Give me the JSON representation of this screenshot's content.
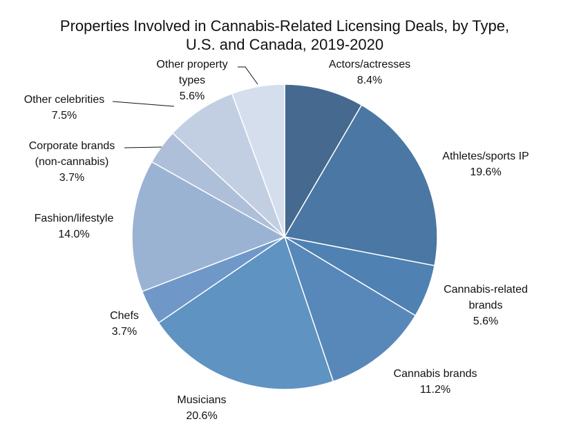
{
  "chart_data": {
    "type": "pie",
    "title": "Properties Involved in Cannabis-Related Licensing Deals, by Type,",
    "subtitle": "U.S. and Canada, 2019-2020",
    "start_angle_deg": 0,
    "direction": "clockwise",
    "legend": "none (labels beside slices)",
    "slices": [
      {
        "label_lines": [
          "Actors/actresses"
        ],
        "value": 8.4,
        "value_label": "8.4%",
        "color": "#45698f"
      },
      {
        "label_lines": [
          "Athletes/sports IP"
        ],
        "value": 19.6,
        "value_label": "19.6%",
        "color": "#4a77a3"
      },
      {
        "label_lines": [
          "Cannabis-related",
          "brands"
        ],
        "value": 5.6,
        "value_label": "5.6%",
        "color": "#4f81b2"
      },
      {
        "label_lines": [
          "Cannabis brands"
        ],
        "value": 11.2,
        "value_label": "11.2%",
        "color": "#5888ba"
      },
      {
        "label_lines": [
          "Musicians"
        ],
        "value": 20.6,
        "value_label": "20.6%",
        "color": "#5e93c2"
      },
      {
        "label_lines": [
          "Chefs"
        ],
        "value": 3.7,
        "value_label": "3.7%",
        "color": "#6f98c8"
      },
      {
        "label_lines": [
          "Fashion/lifestyle"
        ],
        "value": 14.0,
        "value_label": "14.0%",
        "color": "#9bb3d3"
      },
      {
        "label_lines": [
          "Corporate brands",
          "(non-cannabis)"
        ],
        "value": 3.7,
        "value_label": "3.7%",
        "color": "#aebfd9"
      },
      {
        "label_lines": [
          "Other celebrities"
        ],
        "value": 7.5,
        "value_label": "7.5%",
        "color": "#c2cfe3"
      },
      {
        "label_lines": [
          "Other property",
          "types"
        ],
        "value": 5.6,
        "value_label": "5.6%",
        "color": "#d5deec"
      }
    ]
  }
}
